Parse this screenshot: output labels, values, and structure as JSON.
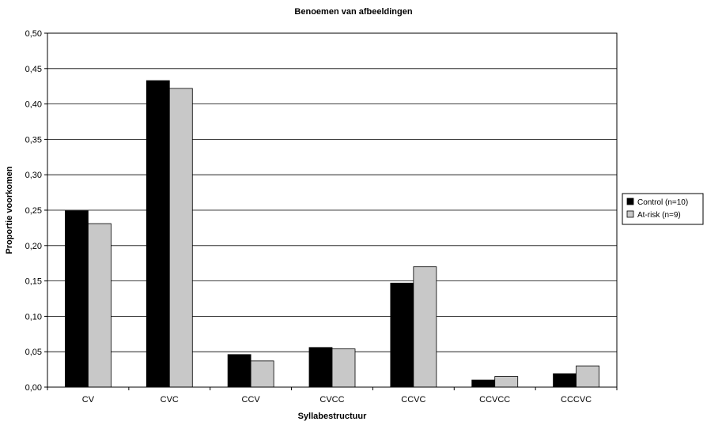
{
  "chart_data": {
    "type": "bar",
    "title": "Benoemen van afbeeldingen",
    "xlabel": "Syllabestructuur",
    "ylabel": "Proportie voorkomen",
    "categories": [
      "CV",
      "CVC",
      "CCV",
      "CVCC",
      "CCVC",
      "CCVCC",
      "CCCVC"
    ],
    "series": [
      {
        "name": "Control (n=10)",
        "color": "#000000",
        "values": [
          0.249,
          0.433,
          0.046,
          0.056,
          0.147,
          0.01,
          0.019
        ]
      },
      {
        "name": "At-risk (n=9)",
        "color": "#c8c8c8",
        "values": [
          0.231,
          0.422,
          0.037,
          0.054,
          0.17,
          0.015,
          0.03
        ]
      }
    ],
    "ylim": [
      0,
      0.5
    ],
    "yticks": [
      "0,00",
      "0,05",
      "0,10",
      "0,15",
      "0,20",
      "0,25",
      "0,30",
      "0,35",
      "0,40",
      "0,45",
      "0,50"
    ],
    "grid": true,
    "legend_position": "right"
  }
}
